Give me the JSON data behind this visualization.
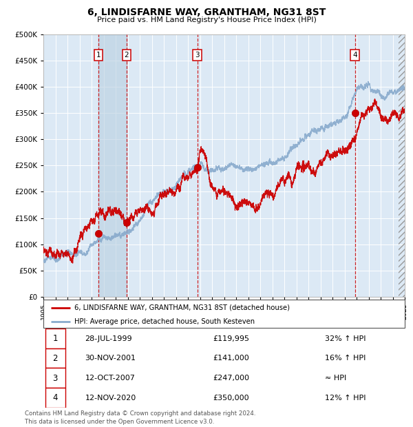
{
  "title": "6, LINDISFARNE WAY, GRANTHAM, NG31 8ST",
  "subtitle": "Price paid vs. HM Land Registry's House Price Index (HPI)",
  "plot_bg_color": "#dce9f5",
  "red_line_color": "#cc0000",
  "blue_line_color": "#88aacc",
  "ylim": [
    0,
    500000
  ],
  "yticks": [
    0,
    50000,
    100000,
    150000,
    200000,
    250000,
    300000,
    350000,
    400000,
    450000,
    500000
  ],
  "year_start": 1995,
  "year_end": 2025,
  "sales": [
    {
      "label": "1",
      "year": 1999.57,
      "price": 119995
    },
    {
      "label": "2",
      "year": 2001.91,
      "price": 141000
    },
    {
      "label": "3",
      "year": 2007.78,
      "price": 247000
    },
    {
      "label": "4",
      "year": 2020.87,
      "price": 350000
    }
  ],
  "table_rows": [
    {
      "num": "1",
      "date": "28-JUL-1999",
      "price": "£119,995",
      "rel": "32% ↑ HPI"
    },
    {
      "num": "2",
      "date": "30-NOV-2001",
      "price": "£141,000",
      "rel": "16% ↑ HPI"
    },
    {
      "num": "3",
      "date": "12-OCT-2007",
      "price": "£247,000",
      "rel": "≈ HPI"
    },
    {
      "num": "4",
      "date": "12-NOV-2020",
      "price": "£350,000",
      "rel": "12% ↑ HPI"
    }
  ],
  "footer": "Contains HM Land Registry data © Crown copyright and database right 2024.\nThis data is licensed under the Open Government Licence v3.0.",
  "legend1": "6, LINDISFARNE WAY, GRANTHAM, NG31 8ST (detached house)",
  "legend2": "HPI: Average price, detached house, South Kesteven"
}
